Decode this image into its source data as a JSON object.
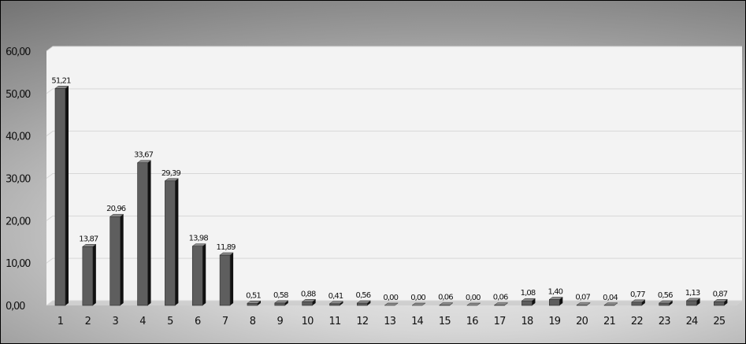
{
  "chart_data": {
    "type": "bar",
    "title": "",
    "xlabel": "",
    "ylabel": "",
    "ylim": [
      0,
      60
    ],
    "yticks": [
      "0,00",
      "10,00",
      "20,00",
      "30,00",
      "40,00",
      "50,00",
      "60,00"
    ],
    "categories": [
      "1",
      "2",
      "3",
      "4",
      "5",
      "6",
      "7",
      "8",
      "9",
      "10",
      "11",
      "12",
      "13",
      "14",
      "15",
      "16",
      "17",
      "18",
      "19",
      "20",
      "21",
      "22",
      "23",
      "24",
      "25"
    ],
    "values": [
      51.21,
      13.87,
      20.96,
      33.67,
      29.39,
      13.98,
      11.89,
      0.51,
      0.58,
      0.88,
      0.41,
      0.56,
      0.0,
      0.0,
      0.06,
      0.0,
      0.06,
      1.08,
      1.4,
      0.07,
      0.04,
      0.77,
      0.56,
      1.13,
      0.87
    ],
    "value_labels": [
      "51,21",
      "13,87",
      "20,96",
      "33,67",
      "29,39",
      "13,98",
      "11,89",
      "0,51",
      "0,58",
      "0,88",
      "0,41",
      "0,56",
      "0,00",
      "0,00",
      "0,06",
      "0,00",
      "0,06",
      "1,08",
      "1,40",
      "0,07",
      "0,04",
      "0,77",
      "0,56",
      "1,13",
      "0,87"
    ],
    "grid": true,
    "legend": "none",
    "colors": {
      "bar_front": "#5e5e5e",
      "bar_side": "#111111",
      "bar_top": "#8a8a8a",
      "plot_wall": "#f3f3f3",
      "grid_line": "#d7d7d7"
    }
  }
}
